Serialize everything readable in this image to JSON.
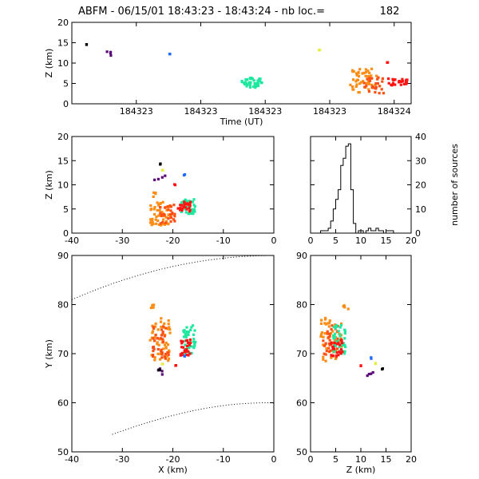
{
  "title": {
    "text": "ABFM - 06/15/01 18:43:23 - 18:43:24 - nb loc.=",
    "count": "182"
  },
  "chart_data": [
    {
      "id": "time-z",
      "type": "scatter",
      "xlabel": "Time (UT)",
      "ylabel": "Z (km)",
      "xlim": [
        0,
        1
      ],
      "ylim": [
        0,
        20
      ],
      "x_ticks": [
        {
          "v": 0.19,
          "label": "184323"
        },
        {
          "v": 0.38,
          "label": "184323"
        },
        {
          "v": 0.57,
          "label": "184323"
        },
        {
          "v": 0.76,
          "label": "184323"
        },
        {
          "v": 0.95,
          "label": "184324"
        }
      ],
      "y_ticks": [
        0,
        5,
        10,
        15,
        20
      ],
      "clusters": [
        {
          "color": "#000000",
          "n": 2,
          "x": [
            0.04,
            0.045
          ],
          "y": [
            14.5,
            14.6
          ]
        },
        {
          "color": "#5a0a78",
          "n": 4,
          "x": [
            0.1,
            0.12
          ],
          "y": [
            11.3,
            13.0
          ]
        },
        {
          "color": "#1e6bff",
          "n": 2,
          "x": [
            0.285,
            0.29
          ],
          "y": [
            12.2,
            12.4
          ]
        },
        {
          "color": "#1ee8a0",
          "n": 40,
          "x": [
            0.5,
            0.56
          ],
          "y": [
            4.0,
            6.5
          ]
        },
        {
          "color": "#e6ee3c",
          "n": 2,
          "x": [
            0.728,
            0.732
          ],
          "y": [
            13.0,
            13.3
          ]
        },
        {
          "color": "#ff8c14",
          "n": 45,
          "x": [
            0.82,
            0.9
          ],
          "y": [
            2.8,
            8.6
          ]
        },
        {
          "color": "#ff5014",
          "n": 25,
          "x": [
            0.86,
            0.92
          ],
          "y": [
            2.5,
            6.5
          ]
        },
        {
          "color": "#ff1414",
          "n": 3,
          "x": [
            0.928,
            0.932
          ],
          "y": [
            9.8,
            10.2
          ]
        },
        {
          "color": "#ff1414",
          "n": 25,
          "x": [
            0.93,
            1.0
          ],
          "y": [
            4.5,
            6.2
          ]
        }
      ]
    },
    {
      "id": "x-z",
      "type": "scatter",
      "xlabel": "",
      "ylabel": "Z (km)",
      "xlim": [
        -40,
        0
      ],
      "ylim": [
        0,
        20
      ],
      "x_ticks": [
        -40,
        -30,
        -20,
        -10,
        0
      ],
      "y_ticks": [
        0,
        5,
        10,
        15,
        20
      ],
      "clusters": [
        {
          "color": "#000000",
          "n": 2,
          "x": [
            -22.6,
            -22.4
          ],
          "y": [
            14.1,
            14.4
          ]
        },
        {
          "color": "#e6ee3c",
          "n": 2,
          "x": [
            -22.2,
            -22.0
          ],
          "y": [
            12.9,
            13.1
          ]
        },
        {
          "color": "#5a0a78",
          "n": 4,
          "x": [
            -23.8,
            -20.6
          ],
          "y": [
            10.8,
            12.3
          ]
        },
        {
          "color": "#1e6bff",
          "n": 2,
          "x": [
            -17.9,
            -17.6
          ],
          "y": [
            12.0,
            12.3
          ]
        },
        {
          "color": "#ff1414",
          "n": 2,
          "x": [
            -19.7,
            -19.5
          ],
          "y": [
            9.8,
            10.1
          ]
        },
        {
          "color": "#ff8c14",
          "n": 4,
          "x": [
            -24.8,
            -23.4
          ],
          "y": [
            7.4,
            8.6
          ]
        },
        {
          "color": "#ff8c14",
          "n": 45,
          "x": [
            -24.5,
            -20.5
          ],
          "y": [
            1.5,
            6.5
          ]
        },
        {
          "color": "#ff5014",
          "n": 30,
          "x": [
            -23.0,
            -19.5
          ],
          "y": [
            2.0,
            6.0
          ]
        },
        {
          "color": "#1ee8a0",
          "n": 40,
          "x": [
            -18.5,
            -15.5
          ],
          "y": [
            4.0,
            7.0
          ]
        },
        {
          "color": "#ff1414",
          "n": 25,
          "x": [
            -19.0,
            -16.5
          ],
          "y": [
            4.5,
            6.5
          ]
        }
      ]
    },
    {
      "id": "z-histogram",
      "type": "bar",
      "xlabel": "",
      "ylabel": "number of sources",
      "xlim": [
        0,
        20
      ],
      "ylim": [
        0,
        40
      ],
      "x_ticks": [
        0,
        5,
        10,
        15,
        20
      ],
      "y_ticks": [
        0,
        10,
        20,
        30,
        40
      ],
      "bin_width": 0.5,
      "bin_start": 0,
      "counts": [
        0,
        0,
        0,
        0,
        1,
        1,
        1,
        2,
        5,
        10,
        14,
        18,
        28,
        31,
        36,
        37,
        18,
        4,
        0,
        1,
        1,
        0,
        1,
        2,
        1,
        1,
        2,
        1,
        1,
        0,
        1,
        1,
        1,
        0,
        0,
        0,
        0,
        0,
        0,
        0
      ]
    },
    {
      "id": "x-y",
      "type": "scatter",
      "xlabel": "X (km)",
      "ylabel": "Y (km)",
      "xlim": [
        -40,
        0
      ],
      "ylim": [
        50,
        90
      ],
      "x_ticks": [
        -40,
        -30,
        -20,
        -10,
        0
      ],
      "y_ticks": [
        50,
        60,
        70,
        80,
        90
      ],
      "boundary_lines": true,
      "clusters": [
        {
          "color": "#ff8c14",
          "n": 4,
          "x": [
            -24.5,
            -23.5
          ],
          "y": [
            79.0,
            80.0
          ]
        },
        {
          "color": "#ff8c14",
          "n": 50,
          "x": [
            -24.5,
            -20.5
          ],
          "y": [
            68.5,
            77.5
          ]
        },
        {
          "color": "#ff5014",
          "n": 35,
          "x": [
            -24.0,
            -20.5
          ],
          "y": [
            69.0,
            76.0
          ]
        },
        {
          "color": "#1ee8a0",
          "n": 40,
          "x": [
            -18.0,
            -15.5
          ],
          "y": [
            70.0,
            76.0
          ]
        },
        {
          "color": "#ff1414",
          "n": 25,
          "x": [
            -18.5,
            -16.5
          ],
          "y": [
            69.5,
            73.0
          ]
        },
        {
          "color": "#1e6bff",
          "n": 2,
          "x": [
            -17.8,
            -17.6
          ],
          "y": [
            69.3,
            69.6
          ]
        },
        {
          "color": "#e6ee3c",
          "n": 2,
          "x": [
            -22.2,
            -22.0
          ],
          "y": [
            67.8,
            68.1
          ]
        },
        {
          "color": "#ff1414",
          "n": 2,
          "x": [
            -19.6,
            -19.4
          ],
          "y": [
            67.4,
            67.7
          ]
        },
        {
          "color": "#5a0a78",
          "n": 4,
          "x": [
            -23.0,
            -20.8
          ],
          "y": [
            65.5,
            67.0
          ]
        },
        {
          "color": "#000000",
          "n": 2,
          "x": [
            -22.8,
            -22.6
          ],
          "y": [
            66.5,
            66.8
          ]
        }
      ]
    },
    {
      "id": "z-y",
      "type": "scatter",
      "xlabel": "Z (km)",
      "ylabel": "",
      "xlim": [
        0,
        20
      ],
      "ylim": [
        50,
        90
      ],
      "x_ticks": [
        0,
        5,
        10,
        15,
        20
      ],
      "y_ticks": [
        50,
        60,
        70,
        80,
        90
      ],
      "clusters": [
        {
          "color": "#ff8c14",
          "n": 4,
          "x": [
            5.6,
            7.6
          ],
          "y": [
            79.0,
            80.3
          ]
        },
        {
          "color": "#ff8c14",
          "n": 50,
          "x": [
            2.0,
            6.5
          ],
          "y": [
            68.5,
            77.5
          ]
        },
        {
          "color": "#ff5014",
          "n": 35,
          "x": [
            2.5,
            5.5
          ],
          "y": [
            69.0,
            76.0
          ]
        },
        {
          "color": "#1ee8a0",
          "n": 40,
          "x": [
            4.5,
            7.0
          ],
          "y": [
            70.0,
            76.0
          ]
        },
        {
          "color": "#ff1414",
          "n": 25,
          "x": [
            4.0,
            6.5
          ],
          "y": [
            69.5,
            73.0
          ]
        },
        {
          "color": "#1e6bff",
          "n": 2,
          "x": [
            12.0,
            12.3
          ],
          "y": [
            69.0,
            69.3
          ]
        },
        {
          "color": "#ff1414",
          "n": 2,
          "x": [
            9.8,
            10.1
          ],
          "y": [
            67.5,
            67.8
          ]
        },
        {
          "color": "#e6ee3c",
          "n": 2,
          "x": [
            12.9,
            13.1
          ],
          "y": [
            67.8,
            68.1
          ]
        },
        {
          "color": "#5a0a78",
          "n": 4,
          "x": [
            11.0,
            12.5
          ],
          "y": [
            65.5,
            66.3
          ]
        },
        {
          "color": "#000000",
          "n": 2,
          "x": [
            14.2,
            14.5
          ],
          "y": [
            66.8,
            67.1
          ]
        }
      ]
    }
  ]
}
